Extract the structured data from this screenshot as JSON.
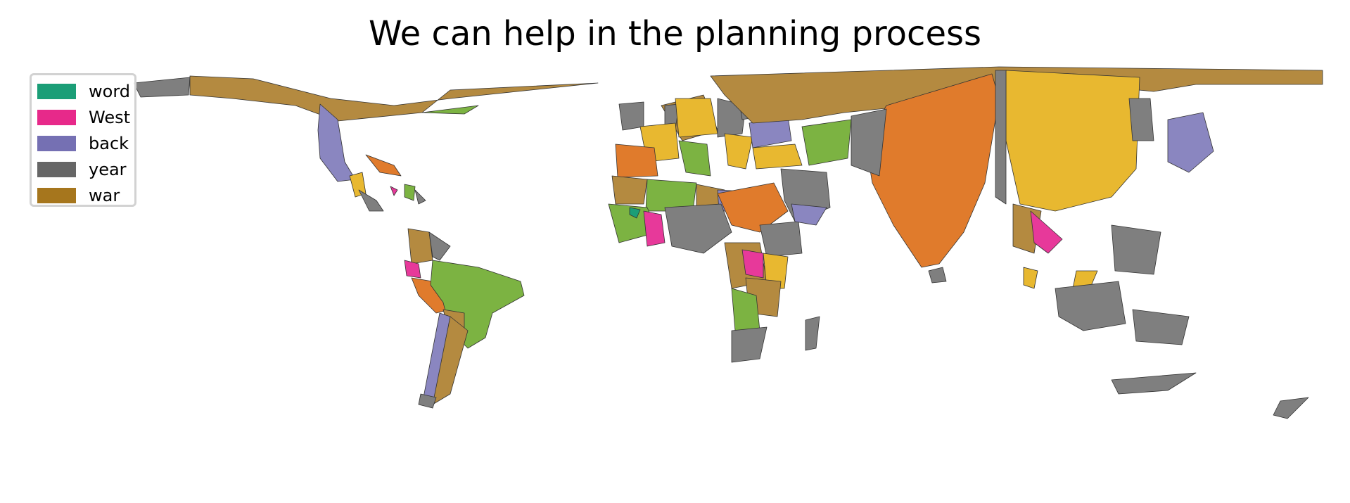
{
  "title": "We can help in the planning process",
  "legend": {
    "items": [
      {
        "label": "word",
        "color": "#1b9e77"
      },
      {
        "label": "West",
        "color": "#e7298a"
      },
      {
        "label": "back",
        "color": "#7570b3"
      },
      {
        "label": "year",
        "color": "#666666"
      },
      {
        "label": "war",
        "color": "#a6761d"
      }
    ]
  },
  "map_colors": {
    "brown": "#b48a40",
    "grey": "#7f7f7f",
    "orange": "#e07b2c",
    "yellow": "#e8b830",
    "green": "#7cb342",
    "purple": "#8a86c0",
    "pink": "#e7399a",
    "teal": "#1b9e77"
  }
}
